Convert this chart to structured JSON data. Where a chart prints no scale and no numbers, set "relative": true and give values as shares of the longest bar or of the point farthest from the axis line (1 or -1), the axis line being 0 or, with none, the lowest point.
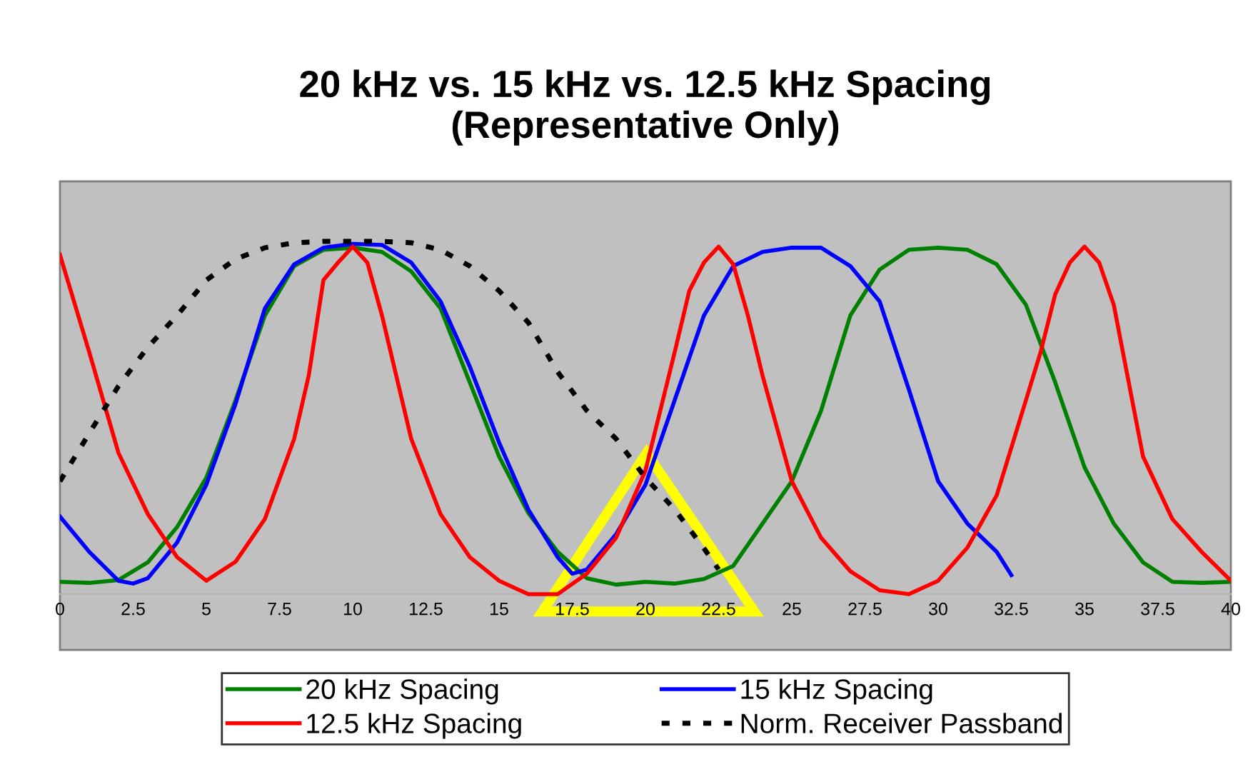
{
  "chart_data": {
    "type": "line",
    "title": "20 kHz vs. 15 kHz vs. 12.5 kHz Spacing\n(Representative Only)",
    "relative": true,
    "xlim": [
      0,
      40
    ],
    "xticks": [
      0,
      2.5,
      5,
      7.5,
      10,
      12.5,
      15,
      17.5,
      20,
      22.5,
      25,
      27.5,
      30,
      32.5,
      35,
      37.5,
      40
    ],
    "grid": false,
    "legend": "bottom",
    "marker": "none",
    "series": [
      {
        "name": "20 kHz Spacing",
        "color": "#008000",
        "line_style": "solid",
        "x": [
          0,
          1,
          2,
          3,
          4,
          5,
          6,
          7,
          8,
          9,
          10,
          11,
          12,
          13,
          14,
          15,
          16,
          17,
          18,
          19,
          20,
          21,
          22,
          23,
          24,
          25,
          26,
          27,
          28,
          29,
          30,
          31,
          32,
          33,
          34,
          35,
          36,
          37,
          38,
          39,
          40
        ],
        "values": [
          0.035,
          0.032,
          0.04,
          0.09,
          0.19,
          0.33,
          0.55,
          0.79,
          0.93,
          0.976,
          0.982,
          0.97,
          0.915,
          0.81,
          0.6,
          0.39,
          0.23,
          0.12,
          0.045,
          0.027,
          0.035,
          0.03,
          0.043,
          0.08,
          0.2,
          0.32,
          0.52,
          0.79,
          0.92,
          0.976,
          0.982,
          0.976,
          0.935,
          0.82,
          0.6,
          0.36,
          0.2,
          0.09,
          0.035,
          0.032,
          0.035
        ]
      },
      {
        "name": "15 kHz Spacing",
        "color": "#0000ff",
        "line_style": "solid",
        "x": [
          0,
          1,
          2,
          2.5,
          3,
          4,
          5,
          6,
          7,
          8,
          9,
          10,
          11,
          12,
          13,
          14,
          15,
          16,
          17,
          17.5,
          18,
          19,
          20,
          21,
          22,
          23,
          24,
          25,
          26,
          27,
          28,
          29,
          30,
          31,
          32,
          32.5
        ],
        "values": [
          0.22,
          0.12,
          0.038,
          0.03,
          0.045,
          0.146,
          0.31,
          0.54,
          0.81,
          0.935,
          0.982,
          0.993,
          0.99,
          0.94,
          0.83,
          0.645,
          0.43,
          0.24,
          0.105,
          0.058,
          0.07,
          0.17,
          0.31,
          0.55,
          0.79,
          0.93,
          0.97,
          0.982,
          0.982,
          0.93,
          0.83,
          0.58,
          0.32,
          0.2,
          0.12,
          0.054
        ]
      },
      {
        "name": "12.5 kHz Spacing",
        "color": "#ff0000",
        "line_style": "solid",
        "x": [
          0,
          1,
          2,
          3,
          4,
          5,
          6,
          7,
          8,
          8.5,
          9,
          9.5,
          10,
          10.5,
          11,
          12,
          13,
          14,
          15,
          16,
          17,
          18,
          19,
          20,
          21,
          21.5,
          22,
          22.5,
          23,
          23.5,
          24,
          25,
          26,
          27,
          28,
          29,
          30,
          31,
          32,
          33,
          33.5,
          34,
          34.5,
          35,
          35.5,
          36,
          37,
          38,
          39,
          40
        ],
        "values": [
          0.962,
          0.686,
          0.4,
          0.227,
          0.105,
          0.038,
          0.092,
          0.213,
          0.44,
          0.62,
          0.89,
          0.94,
          0.985,
          0.94,
          0.79,
          0.44,
          0.227,
          0.105,
          0.038,
          0,
          0,
          0.058,
          0.16,
          0.35,
          0.686,
          0.86,
          0.94,
          0.985,
          0.935,
          0.79,
          0.62,
          0.32,
          0.16,
          0.065,
          0.011,
          0,
          0.038,
          0.132,
          0.28,
          0.55,
          0.686,
          0.85,
          0.94,
          0.985,
          0.94,
          0.82,
          0.39,
          0.213,
          0.12,
          0.038
        ]
      },
      {
        "name": "Norm. Receiver Passband",
        "color": "#000000",
        "line_style": "dotted",
        "x": [
          0,
          1,
          2,
          3,
          4,
          5,
          6,
          7,
          8,
          9,
          10,
          11,
          12,
          13,
          14,
          15,
          16,
          17,
          18,
          19,
          20,
          21,
          22,
          22.5
        ],
        "values": [
          0.32,
          0.456,
          0.59,
          0.7,
          0.79,
          0.89,
          0.95,
          0.982,
          0.996,
          1,
          1,
          1,
          0.996,
          0.976,
          0.93,
          0.86,
          0.77,
          0.63,
          0.52,
          0.44,
          0.33,
          0.24,
          0.13,
          0.07
        ]
      }
    ]
  }
}
